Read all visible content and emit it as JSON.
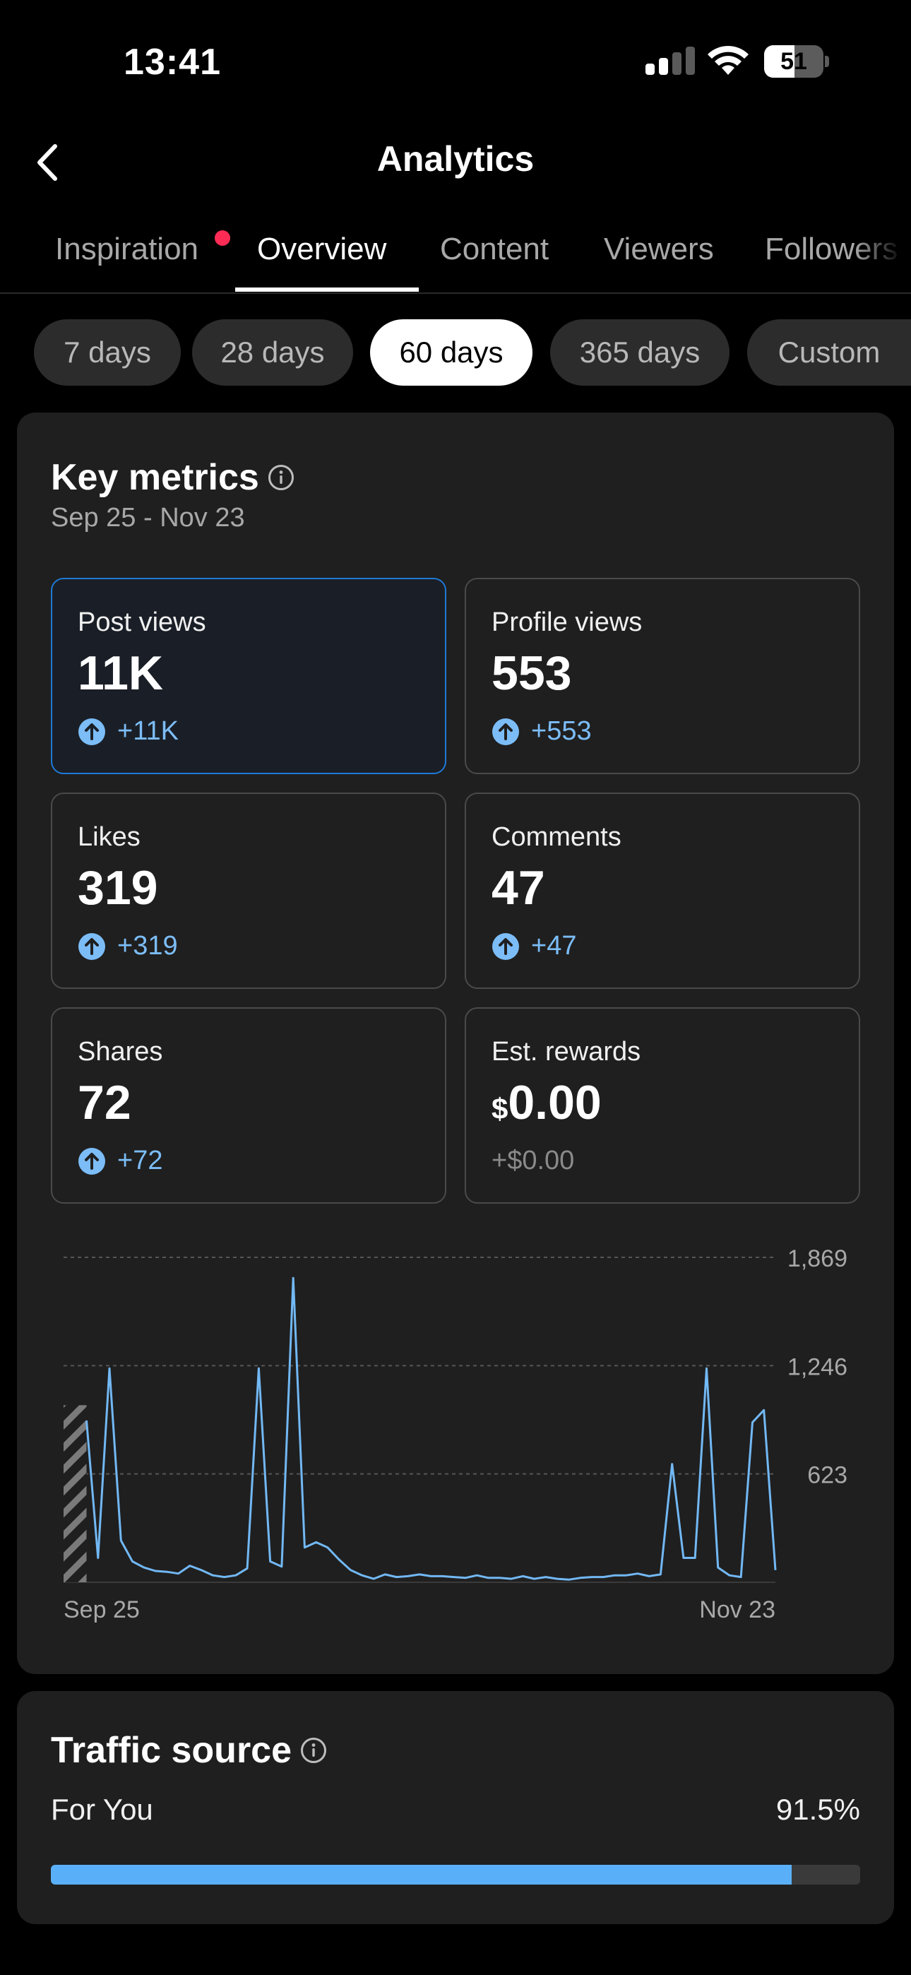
{
  "status_bar": {
    "time": "13:41",
    "battery": "51"
  },
  "header": {
    "title": "Analytics"
  },
  "tabs": [
    {
      "label": "Inspiration",
      "active": false,
      "has_dot": true
    },
    {
      "label": "Overview",
      "active": true
    },
    {
      "label": "Content",
      "active": false
    },
    {
      "label": "Viewers",
      "active": false
    },
    {
      "label": "Followers",
      "active": false
    }
  ],
  "ranges": [
    {
      "label": "7 days",
      "active": false
    },
    {
      "label": "28 days",
      "active": false
    },
    {
      "label": "60 days",
      "active": true
    },
    {
      "label": "365 days",
      "active": false
    },
    {
      "label": "Custom",
      "active": false
    }
  ],
  "key_metrics": {
    "title": "Key metrics",
    "date_range": "Sep 25 - Nov 23",
    "metrics": [
      {
        "label": "Post views",
        "value": "11K",
        "delta": "+11K",
        "selected": true
      },
      {
        "label": "Profile views",
        "value": "553",
        "delta": "+553"
      },
      {
        "label": "Likes",
        "value": "319",
        "delta": "+319"
      },
      {
        "label": "Comments",
        "value": "47",
        "delta": "+47"
      },
      {
        "label": "Shares",
        "value": "72",
        "delta": "+72"
      },
      {
        "label": "Est. rewards",
        "currency": "$",
        "value": "0.00",
        "delta": "+$0.00"
      }
    ]
  },
  "chart_data": {
    "type": "line",
    "title": "",
    "series": [
      {
        "name": "",
        "values": [
          930,
          140,
          1230,
          240,
          120,
          85,
          65,
          60,
          50,
          95,
          70,
          40,
          30,
          40,
          80,
          1230,
          120,
          90,
          1750,
          200,
          230,
          200,
          130,
          70,
          40,
          20,
          45,
          30,
          35,
          45,
          35,
          35,
          30,
          25,
          40,
          25,
          25,
          20,
          35,
          20,
          30,
          20,
          15,
          25,
          30,
          30,
          40,
          40,
          50,
          35,
          45,
          680,
          140,
          140,
          1230,
          85,
          40,
          30,
          920,
          990,
          70
        ]
      }
    ],
    "x_labels": [
      "Sep 25",
      "Nov 23"
    ],
    "y_ticks": [
      "1,869",
      "1,246",
      "623"
    ],
    "ylim": [
      0,
      1869
    ],
    "grid": "dashed horizontal",
    "colors": {
      "line": "#72b8f4",
      "grid": "#555555"
    }
  },
  "traffic_source": {
    "title": "Traffic source",
    "items": [
      {
        "label": "For You",
        "value": "91.5%",
        "fraction": 0.915
      }
    ]
  },
  "colors": {
    "accent": "#5ab0f8",
    "live_dot": "#fe2c55",
    "selected_border": "#1f7ad6"
  }
}
